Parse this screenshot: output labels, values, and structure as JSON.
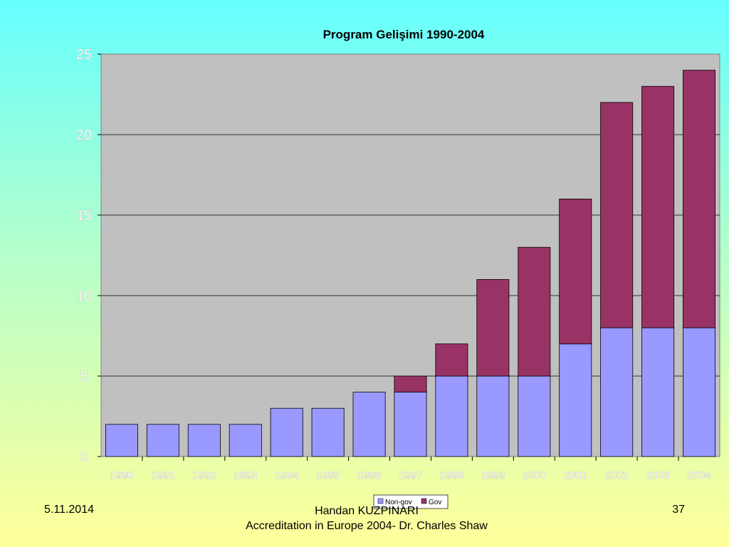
{
  "chart_data": {
    "type": "bar",
    "stacked": true,
    "title": "Program Gelişimi 1990-2004",
    "xlabel": "",
    "ylabel": "",
    "categories": [
      "1990",
      "1991",
      "1992",
      "1993",
      "1994",
      "1995",
      "1996",
      "1997",
      "1998",
      "1999",
      "2000",
      "2001",
      "2002",
      "2003",
      "2004"
    ],
    "series": [
      {
        "name": "Non-gov",
        "color": "#9999ff",
        "values": [
          2,
          2,
          2,
          2,
          3,
          3,
          4,
          4,
          5,
          5,
          5,
          7,
          8,
          8,
          8
        ]
      },
      {
        "name": "Gov",
        "color": "#993366",
        "values": [
          0,
          0,
          0,
          0,
          0,
          0,
          0,
          1,
          2,
          6,
          8,
          9,
          14,
          15,
          16
        ]
      }
    ],
    "ylim": [
      0,
      25
    ],
    "yticks": [
      0,
      5,
      10,
      15,
      20,
      25
    ],
    "grid": true,
    "legend": "bottom-center",
    "plot_background": "#c0c0c0"
  },
  "footer": {
    "date": "5.11.2014",
    "author": "Handan KUZPINARI",
    "source": "Accreditation in Europe 2004- Dr. Charles Shaw",
    "page": "37"
  }
}
